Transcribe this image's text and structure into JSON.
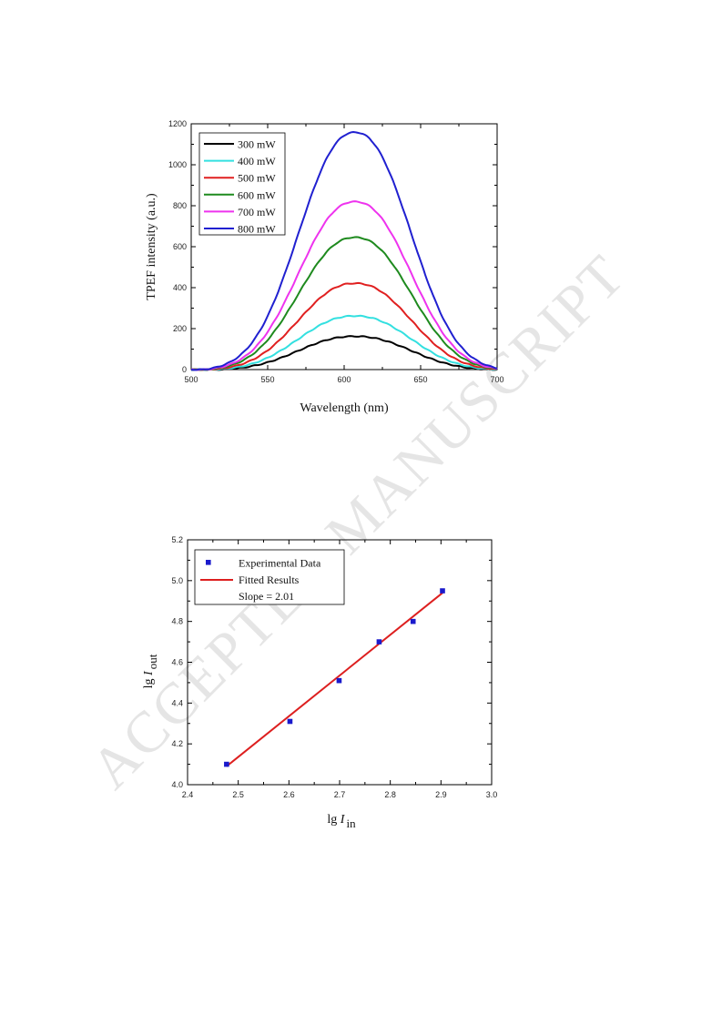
{
  "watermark": "ACCEPTED MANUSCRIPT",
  "chart_data": [
    {
      "type": "line",
      "title": "",
      "xlabel": "Wavelength (nm)",
      "ylabel": "TPEF intensity (a.u.)",
      "xlim": [
        500,
        700
      ],
      "ylim": [
        0,
        1200
      ],
      "xticks": [
        500,
        550,
        600,
        650,
        700
      ],
      "yticks": [
        0,
        200,
        400,
        600,
        800,
        1000,
        1200
      ],
      "legend_position": "top-left",
      "peak_wavelength": 607,
      "series": [
        {
          "name": "300 mW",
          "color": "#000000",
          "peak": 165
        },
        {
          "name": "400 mW",
          "color": "#33e0e0",
          "peak": 265
        },
        {
          "name": "500 mW",
          "color": "#e02020",
          "peak": 425
        },
        {
          "name": "600 mW",
          "color": "#1e8a1e",
          "peak": 650
        },
        {
          "name": "700 mW",
          "color": "#ee33ee",
          "peak": 825
        },
        {
          "name": "800 mW",
          "color": "#2020d0",
          "peak": 1165
        }
      ]
    },
    {
      "type": "scatter",
      "title": "",
      "xlabel_main": "lg ",
      "xlabel_var": "I",
      "xlabel_sub": "in",
      "ylabel_main": "lg ",
      "ylabel_var": "I",
      "ylabel_sub": "out",
      "xlim": [
        2.4,
        3.0
      ],
      "ylim": [
        4.0,
        5.2
      ],
      "xticks": [
        2.4,
        2.5,
        2.6,
        2.7,
        2.8,
        2.9,
        3.0
      ],
      "yticks": [
        4.0,
        4.2,
        4.4,
        4.6,
        4.8,
        5.0,
        5.2
      ],
      "legend_position": "top-left",
      "series": [
        {
          "name": "Experimental Data",
          "color": "#1a1acc",
          "x": [
            2.477,
            2.602,
            2.699,
            2.778,
            2.845,
            2.903
          ],
          "y": [
            4.1,
            4.31,
            4.51,
            4.7,
            4.8,
            4.95
          ]
        },
        {
          "name": "Fitted Results",
          "color": "#dd1f1f",
          "x": [
            2.477,
            2.903
          ],
          "y": [
            4.09,
            4.94
          ]
        }
      ],
      "annotation": "Slope = 2.01"
    }
  ]
}
